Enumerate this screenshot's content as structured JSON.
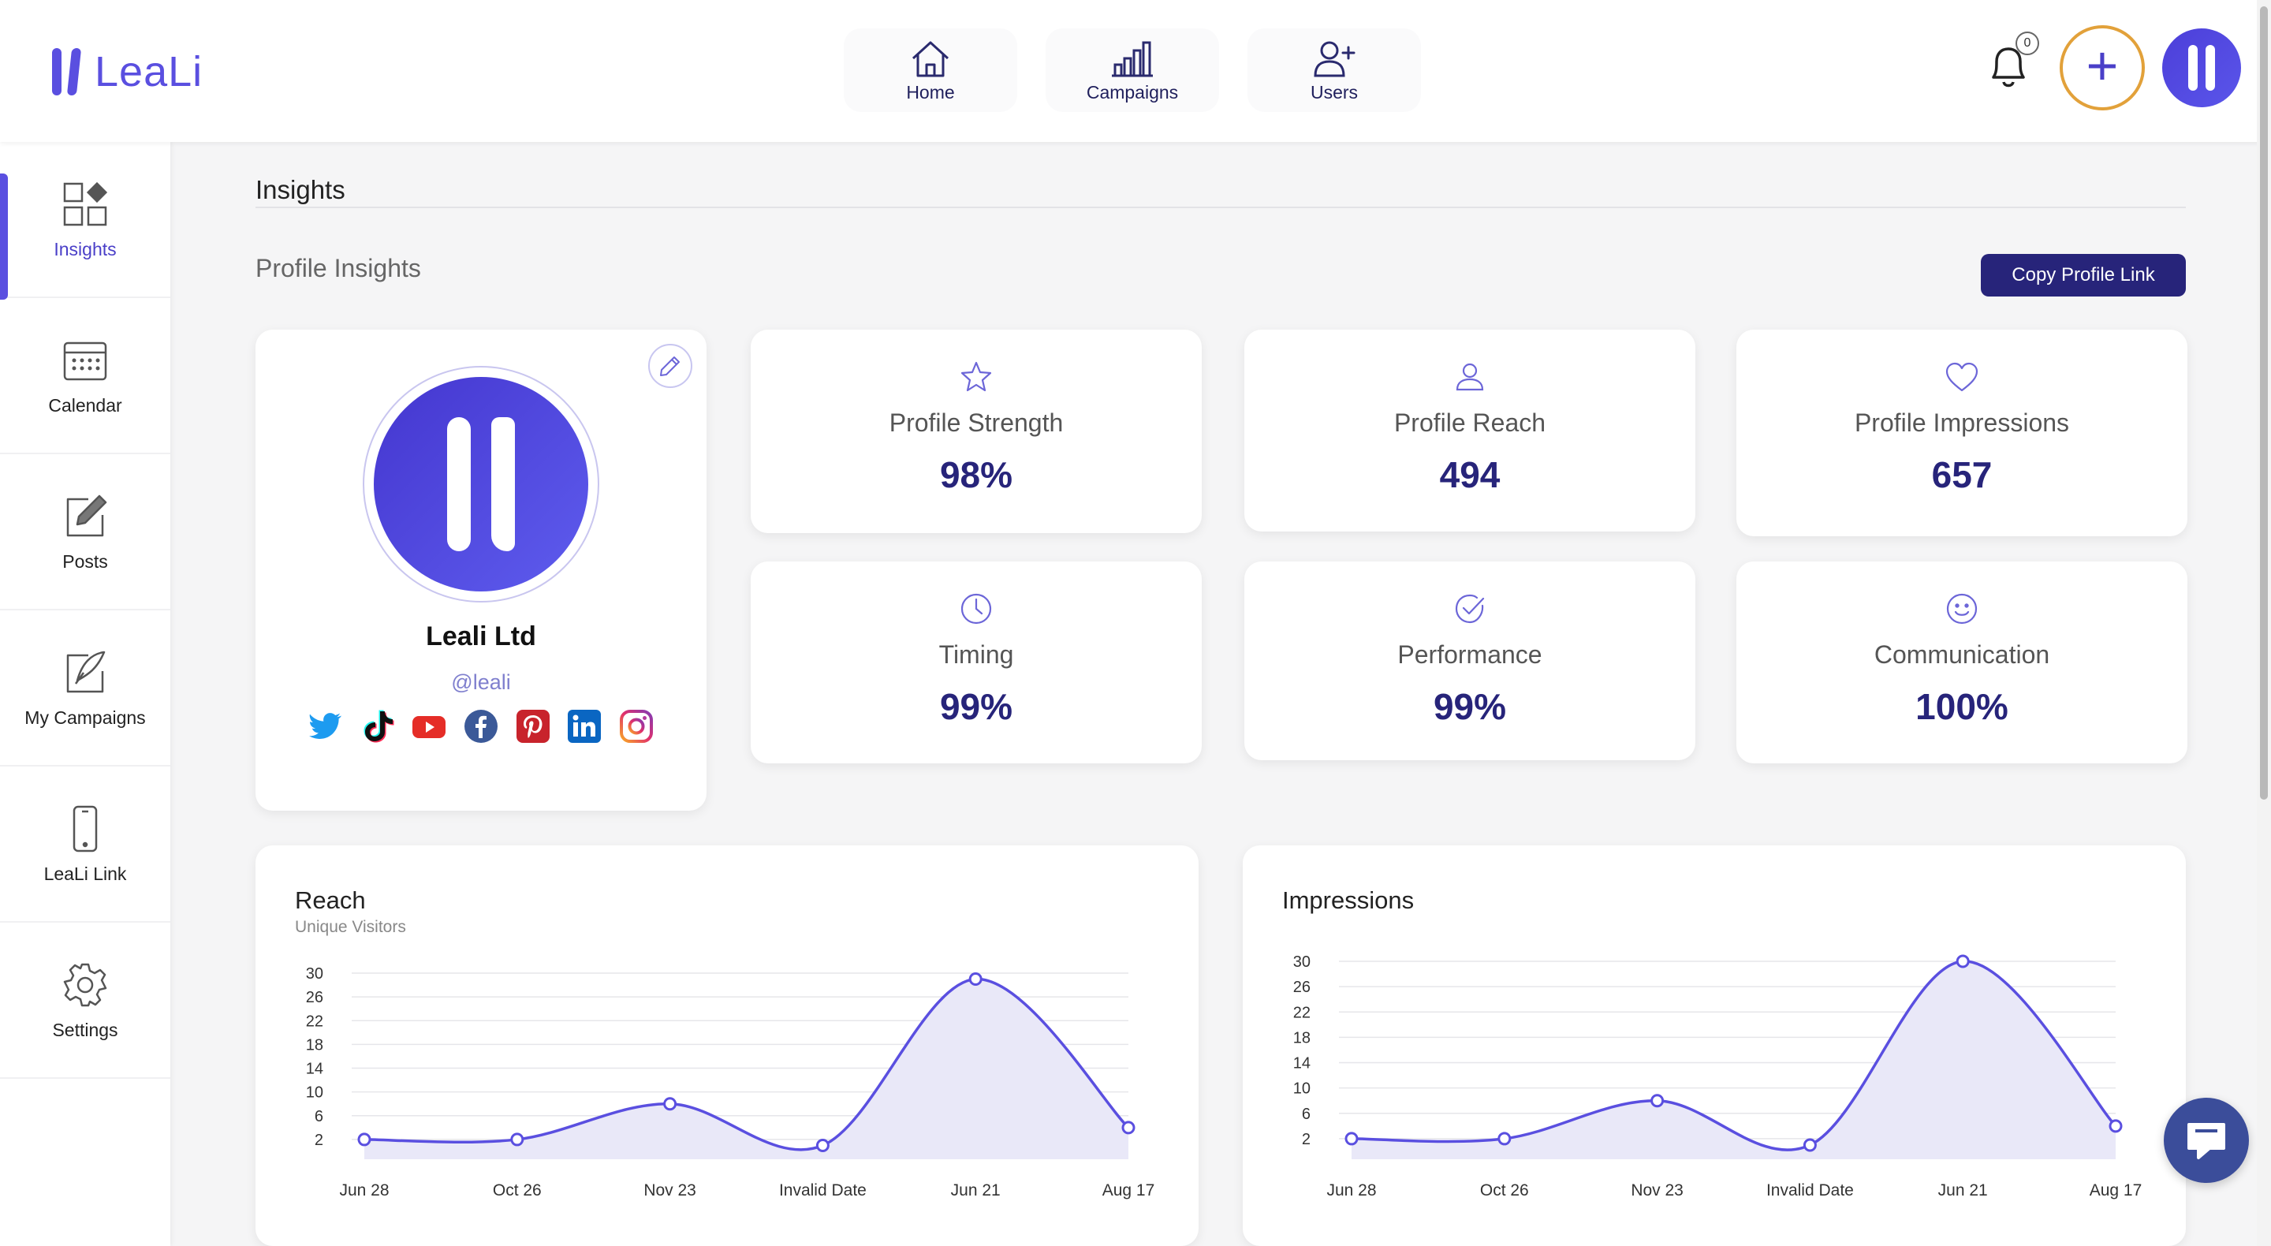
{
  "app": {
    "brand": "LeaLi"
  },
  "topnav": [
    {
      "label": "Home",
      "icon": "home-icon"
    },
    {
      "label": "Campaigns",
      "icon": "bar-chart-icon"
    },
    {
      "label": "Users",
      "icon": "user-plus-icon"
    }
  ],
  "notifications": {
    "count": "0"
  },
  "sidebar": {
    "items": [
      {
        "label": "Insights",
        "icon": "grid-icon",
        "active": true
      },
      {
        "label": "Calendar",
        "icon": "calendar-icon"
      },
      {
        "label": "Posts",
        "icon": "edit-icon"
      },
      {
        "label": "My Campaigns",
        "icon": "quill-icon"
      },
      {
        "label": "LeaLi Link",
        "icon": "phone-icon"
      },
      {
        "label": "Settings",
        "icon": "gear-icon"
      }
    ]
  },
  "main": {
    "page_title": "Insights",
    "section_title": "Profile Insights",
    "copy_button": "Copy Profile Link"
  },
  "profile": {
    "name": "Leali Ltd",
    "handle": "@leali",
    "socials": [
      "twitter-icon",
      "tiktok-icon",
      "youtube-icon",
      "facebook-icon",
      "pinterest-icon",
      "linkedin-icon",
      "instagram-icon"
    ]
  },
  "stats": [
    {
      "label": "Profile Strength",
      "value": "98%",
      "icon": "star-icon"
    },
    {
      "label": "Profile Reach",
      "value": "494",
      "icon": "user-icon"
    },
    {
      "label": "Profile Impressions",
      "value": "657",
      "icon": "heart-icon"
    },
    {
      "label": "Timing",
      "value": "99%",
      "icon": "clock-icon"
    },
    {
      "label": "Performance",
      "value": "99%",
      "icon": "check-circle-icon"
    },
    {
      "label": "Communication",
      "value": "100%",
      "icon": "smile-icon"
    }
  ],
  "colors": {
    "accent": "#5a4fe0",
    "navy": "#27247a",
    "area_fill": "#e9e8f8"
  },
  "chart_data": [
    {
      "type": "area",
      "title": "Reach",
      "subtitle": "Unique Visitors",
      "categories": [
        "Jun 28",
        "Oct 26",
        "Nov 23",
        "Invalid Date",
        "Jun 21",
        "Aug 17"
      ],
      "values": [
        2,
        2,
        8,
        1,
        29,
        4
      ],
      "yticks": [
        2,
        6,
        10,
        14,
        18,
        22,
        26,
        30
      ],
      "ylim": [
        0,
        30
      ],
      "grid": true
    },
    {
      "type": "area",
      "title": "Impressions",
      "subtitle": "",
      "categories": [
        "Jun 28",
        "Oct 26",
        "Nov 23",
        "Invalid Date",
        "Jun 21",
        "Aug 17"
      ],
      "values": [
        2,
        2,
        8,
        1,
        30,
        4
      ],
      "yticks": [
        2,
        6,
        10,
        14,
        18,
        22,
        26,
        30
      ],
      "ylim": [
        0,
        30
      ],
      "grid": true
    }
  ]
}
